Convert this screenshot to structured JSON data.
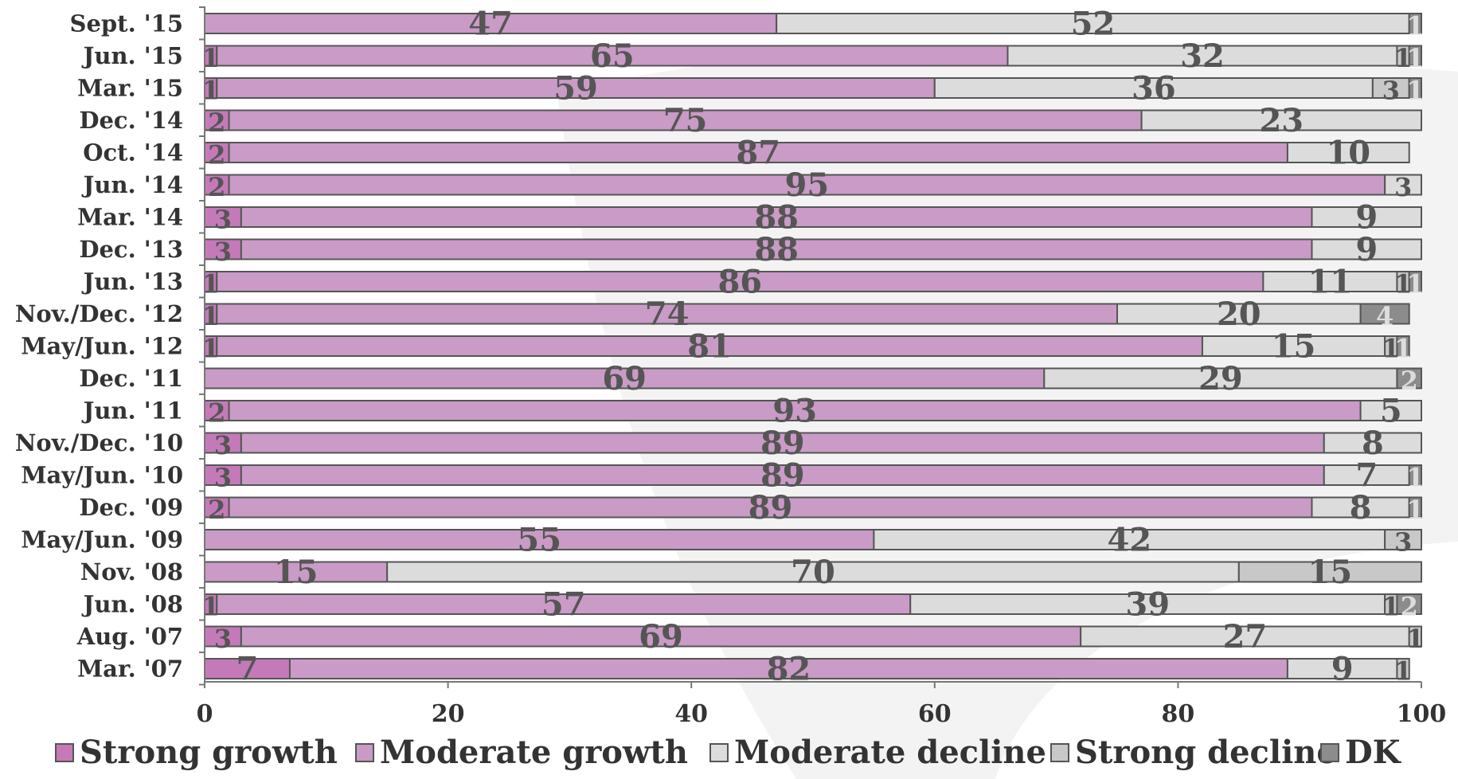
{
  "chart_data": {
    "type": "bar",
    "orientation": "horizontal",
    "stacked": true,
    "categories": [
      "Sept. '15",
      "Jun. '15",
      "Mar. '15",
      "Dec. '14",
      "Oct. '14",
      "Jun. '14",
      "Mar. '14",
      "Dec. '13",
      "Jun. '13",
      "Nov./Dec. '12",
      "May/Jun. '12",
      "Dec. '11",
      "Jun. '11",
      "Nov./Dec. '10",
      "May/Jun. '10",
      "Dec. '09",
      "May/Jun. '09",
      "Nov. '08",
      "Jun. '08",
      "Aug. '07",
      "Mar. '07"
    ],
    "series": [
      {
        "name": "Strong growth",
        "color": "#c47ab8",
        "values": [
          0,
          1,
          1,
          2,
          2,
          2,
          3,
          3,
          1,
          1,
          1,
          0,
          2,
          3,
          3,
          2,
          0,
          0,
          1,
          3,
          7
        ]
      },
      {
        "name": "Moderate growth",
        "color": "#c99bc6",
        "values": [
          47,
          65,
          59,
          75,
          87,
          95,
          88,
          88,
          86,
          74,
          81,
          69,
          93,
          89,
          89,
          89,
          55,
          15,
          57,
          69,
          82
        ]
      },
      {
        "name": "Moderate decline",
        "color": "#dcdcdc",
        "values": [
          52,
          32,
          36,
          23,
          10,
          3,
          9,
          9,
          11,
          20,
          15,
          29,
          5,
          8,
          7,
          8,
          42,
          70,
          39,
          27,
          9
        ]
      },
      {
        "name": "Strong decline",
        "color": "#c8c8c8",
        "values": [
          0,
          1,
          3,
          0,
          0,
          0,
          0,
          0,
          1,
          0,
          1,
          0,
          0,
          0,
          0,
          0,
          3,
          15,
          1,
          1,
          1
        ]
      },
      {
        "name": "DK",
        "color": "#8c8c8c",
        "values": [
          1,
          1,
          1,
          0,
          0,
          0,
          0,
          0,
          1,
          4,
          1,
          2,
          0,
          0,
          1,
          1,
          0,
          0,
          2,
          0,
          0
        ]
      }
    ],
    "xlim": [
      0,
      100
    ],
    "xticks": [
      0,
      20,
      40,
      60,
      80,
      100
    ],
    "xlabel": "",
    "ylabel": "",
    "title": "",
    "grid": false,
    "legend_position": "bottom"
  }
}
